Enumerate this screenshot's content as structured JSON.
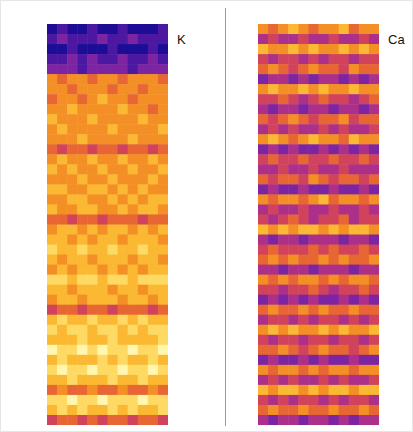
{
  "chart_data": [
    {
      "type": "heatmap",
      "title": "K",
      "tick_labels": false,
      "cells": [
        [
          0,
          1,
          0,
          0,
          1,
          0,
          0,
          1,
          0,
          0,
          0,
          1
        ],
        [
          1,
          2,
          1,
          1,
          1,
          2,
          1,
          1,
          2,
          1,
          1,
          1
        ],
        [
          0,
          0,
          1,
          0,
          0,
          0,
          1,
          0,
          0,
          0,
          1,
          0
        ],
        [
          1,
          1,
          2,
          1,
          2,
          1,
          1,
          2,
          1,
          1,
          2,
          1
        ],
        [
          2,
          2,
          2,
          1,
          2,
          2,
          2,
          2,
          1,
          2,
          2,
          2
        ],
        [
          6,
          5,
          6,
          6,
          5,
          6,
          6,
          5,
          6,
          6,
          6,
          5
        ],
        [
          6,
          6,
          5,
          6,
          6,
          6,
          5,
          6,
          6,
          5,
          6,
          6
        ],
        [
          5,
          6,
          6,
          5,
          6,
          7,
          6,
          6,
          5,
          6,
          6,
          6
        ],
        [
          6,
          6,
          7,
          6,
          6,
          6,
          6,
          7,
          6,
          6,
          5,
          6
        ],
        [
          7,
          6,
          6,
          6,
          7,
          6,
          6,
          6,
          6,
          7,
          6,
          6
        ],
        [
          6,
          7,
          6,
          6,
          6,
          6,
          7,
          6,
          6,
          6,
          6,
          7
        ],
        [
          6,
          6,
          6,
          7,
          6,
          6,
          6,
          6,
          7,
          6,
          6,
          6
        ],
        [
          5,
          4,
          5,
          5,
          4,
          5,
          5,
          4,
          5,
          5,
          4,
          5
        ],
        [
          6,
          7,
          6,
          6,
          7,
          6,
          6,
          7,
          6,
          6,
          7,
          6
        ],
        [
          7,
          6,
          7,
          6,
          6,
          7,
          6,
          6,
          7,
          6,
          6,
          7
        ],
        [
          6,
          6,
          6,
          7,
          6,
          6,
          7,
          6,
          6,
          6,
          7,
          6
        ],
        [
          7,
          7,
          6,
          6,
          7,
          7,
          6,
          7,
          6,
          7,
          6,
          6
        ],
        [
          6,
          6,
          7,
          7,
          6,
          6,
          7,
          6,
          7,
          6,
          7,
          7
        ],
        [
          7,
          6,
          6,
          7,
          7,
          6,
          6,
          7,
          6,
          7,
          7,
          6
        ],
        [
          5,
          5,
          4,
          5,
          5,
          4,
          5,
          5,
          5,
          4,
          5,
          5
        ],
        [
          6,
          7,
          7,
          6,
          7,
          6,
          7,
          7,
          6,
          7,
          6,
          7
        ],
        [
          7,
          7,
          6,
          7,
          6,
          7,
          7,
          6,
          7,
          7,
          7,
          6
        ],
        [
          8,
          7,
          7,
          8,
          7,
          7,
          8,
          7,
          7,
          8,
          7,
          7
        ],
        [
          7,
          6,
          7,
          7,
          6,
          7,
          7,
          7,
          6,
          7,
          7,
          6
        ],
        [
          6,
          7,
          6,
          7,
          7,
          6,
          7,
          6,
          7,
          6,
          7,
          7
        ],
        [
          8,
          8,
          7,
          8,
          8,
          7,
          8,
          8,
          7,
          8,
          8,
          8
        ],
        [
          7,
          7,
          6,
          7,
          7,
          7,
          6,
          7,
          7,
          6,
          7,
          7
        ],
        [
          6,
          7,
          7,
          6,
          7,
          7,
          7,
          6,
          7,
          7,
          6,
          7
        ],
        [
          4,
          5,
          5,
          4,
          5,
          5,
          4,
          5,
          5,
          5,
          4,
          5
        ],
        [
          7,
          8,
          7,
          7,
          8,
          7,
          7,
          8,
          7,
          8,
          7,
          7
        ],
        [
          8,
          7,
          8,
          8,
          7,
          8,
          8,
          7,
          8,
          7,
          8,
          8
        ],
        [
          7,
          7,
          7,
          8,
          7,
          7,
          8,
          7,
          7,
          7,
          7,
          8
        ],
        [
          9,
          8,
          8,
          9,
          8,
          9,
          8,
          8,
          9,
          8,
          8,
          9
        ],
        [
          7,
          8,
          7,
          7,
          7,
          8,
          7,
          8,
          7,
          7,
          8,
          7
        ],
        [
          8,
          9,
          8,
          8,
          9,
          8,
          8,
          9,
          8,
          8,
          9,
          8
        ],
        [
          7,
          7,
          8,
          7,
          7,
          7,
          8,
          7,
          7,
          8,
          7,
          7
        ],
        [
          5,
          6,
          5,
          5,
          6,
          5,
          5,
          6,
          5,
          5,
          6,
          5
        ],
        [
          8,
          8,
          9,
          8,
          8,
          9,
          8,
          8,
          8,
          9,
          8,
          8
        ],
        [
          7,
          8,
          7,
          8,
          7,
          7,
          8,
          7,
          8,
          7,
          7,
          8
        ],
        [
          4,
          5,
          5,
          4,
          5,
          4,
          5,
          5,
          4,
          5,
          5,
          4
        ]
      ]
    },
    {
      "type": "heatmap",
      "title": "Ca",
      "tick_labels": false,
      "cells": [
        [
          6,
          5,
          6,
          7,
          6,
          5,
          6,
          6,
          7,
          5,
          6,
          6
        ],
        [
          3,
          4,
          3,
          3,
          4,
          3,
          3,
          4,
          3,
          3,
          4,
          3
        ],
        [
          7,
          6,
          6,
          7,
          6,
          7,
          6,
          6,
          7,
          6,
          7,
          6
        ],
        [
          4,
          3,
          4,
          4,
          3,
          4,
          3,
          4,
          4,
          3,
          4,
          4
        ],
        [
          5,
          6,
          5,
          4,
          5,
          6,
          5,
          5,
          4,
          6,
          5,
          5
        ],
        [
          2,
          3,
          3,
          2,
          3,
          2,
          3,
          3,
          2,
          3,
          2,
          3
        ],
        [
          6,
          7,
          6,
          6,
          7,
          6,
          7,
          6,
          6,
          7,
          6,
          6
        ],
        [
          4,
          4,
          5,
          4,
          3,
          4,
          5,
          4,
          4,
          3,
          4,
          5
        ],
        [
          3,
          2,
          3,
          3,
          2,
          3,
          3,
          2,
          3,
          3,
          2,
          3
        ],
        [
          5,
          4,
          5,
          6,
          5,
          4,
          5,
          5,
          6,
          4,
          5,
          5
        ],
        [
          3,
          4,
          3,
          4,
          3,
          3,
          4,
          3,
          4,
          3,
          3,
          4
        ],
        [
          6,
          7,
          6,
          5,
          6,
          7,
          6,
          6,
          5,
          7,
          6,
          6
        ],
        [
          2,
          3,
          2,
          3,
          2,
          2,
          3,
          2,
          3,
          2,
          3,
          2
        ],
        [
          4,
          5,
          4,
          4,
          5,
          4,
          4,
          5,
          4,
          4,
          5,
          4
        ],
        [
          3,
          3,
          4,
          3,
          3,
          4,
          3,
          3,
          4,
          3,
          3,
          3
        ],
        [
          5,
          4,
          5,
          5,
          4,
          6,
          5,
          4,
          5,
          5,
          4,
          5
        ],
        [
          2,
          3,
          2,
          2,
          3,
          2,
          2,
          3,
          2,
          2,
          3,
          2
        ],
        [
          6,
          5,
          6,
          6,
          5,
          6,
          7,
          5,
          6,
          6,
          5,
          6
        ],
        [
          3,
          4,
          3,
          3,
          4,
          3,
          3,
          4,
          3,
          3,
          4,
          3
        ],
        [
          4,
          3,
          4,
          5,
          4,
          3,
          4,
          4,
          5,
          3,
          4,
          4
        ],
        [
          7,
          6,
          7,
          6,
          7,
          7,
          6,
          7,
          6,
          7,
          7,
          6
        ],
        [
          3,
          2,
          3,
          3,
          2,
          3,
          3,
          3,
          2,
          3,
          3,
          2
        ],
        [
          4,
          5,
          4,
          4,
          4,
          5,
          4,
          5,
          4,
          4,
          5,
          4
        ],
        [
          5,
          6,
          5,
          6,
          5,
          5,
          6,
          5,
          6,
          5,
          5,
          6
        ],
        [
          3,
          3,
          2,
          3,
          3,
          2,
          3,
          3,
          3,
          2,
          3,
          3
        ],
        [
          6,
          5,
          6,
          5,
          6,
          6,
          5,
          6,
          5,
          6,
          6,
          5
        ],
        [
          4,
          4,
          3,
          4,
          4,
          5,
          4,
          3,
          4,
          4,
          5,
          4
        ],
        [
          2,
          3,
          2,
          3,
          2,
          3,
          2,
          2,
          3,
          2,
          3,
          2
        ],
        [
          5,
          6,
          5,
          5,
          6,
          5,
          6,
          5,
          5,
          6,
          5,
          5
        ],
        [
          3,
          4,
          4,
          3,
          4,
          3,
          4,
          4,
          3,
          4,
          3,
          4
        ],
        [
          6,
          7,
          6,
          7,
          6,
          6,
          7,
          6,
          7,
          6,
          6,
          7
        ],
        [
          4,
          3,
          4,
          4,
          3,
          4,
          4,
          3,
          4,
          4,
          3,
          4
        ],
        [
          5,
          5,
          6,
          5,
          4,
          5,
          6,
          5,
          5,
          4,
          5,
          6
        ],
        [
          2,
          3,
          2,
          2,
          3,
          2,
          3,
          2,
          2,
          3,
          2,
          2
        ],
        [
          6,
          5,
          6,
          6,
          5,
          6,
          5,
          6,
          6,
          5,
          6,
          6
        ],
        [
          3,
          4,
          3,
          4,
          3,
          3,
          4,
          3,
          4,
          3,
          3,
          4
        ],
        [
          7,
          6,
          7,
          7,
          6,
          7,
          6,
          7,
          7,
          6,
          7,
          7
        ],
        [
          4,
          3,
          4,
          3,
          4,
          4,
          3,
          4,
          3,
          4,
          4,
          3
        ],
        [
          5,
          6,
          5,
          5,
          6,
          5,
          5,
          6,
          5,
          5,
          6,
          5
        ],
        [
          3,
          2,
          3,
          3,
          2,
          3,
          3,
          2,
          3,
          2,
          3,
          3
        ]
      ]
    }
  ]
}
